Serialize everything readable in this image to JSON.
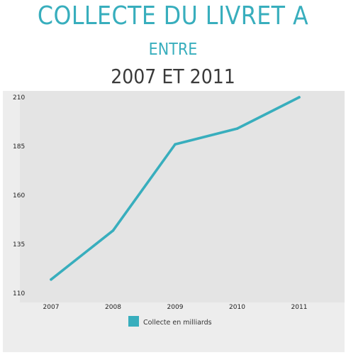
{
  "header": {
    "title": "COLLECTE DU LIVRET A",
    "subtitle": "ENTRE",
    "years": "2007 ET 2011"
  },
  "colors": {
    "accent": "#38aebd",
    "panel": "#ededed",
    "plot": "#e4e4e4"
  },
  "chart_data": {
    "type": "line",
    "x": [
      "2007",
      "2008",
      "2009",
      "2010",
      "2011"
    ],
    "series": [
      {
        "name": "Collecte en milliards",
        "values": [
          117,
          142,
          186,
          194,
          210
        ]
      }
    ],
    "yticks": [
      110,
      135,
      160,
      185,
      210
    ],
    "ylim": [
      110,
      210
    ],
    "grid": false,
    "legend": "bottom-center"
  }
}
